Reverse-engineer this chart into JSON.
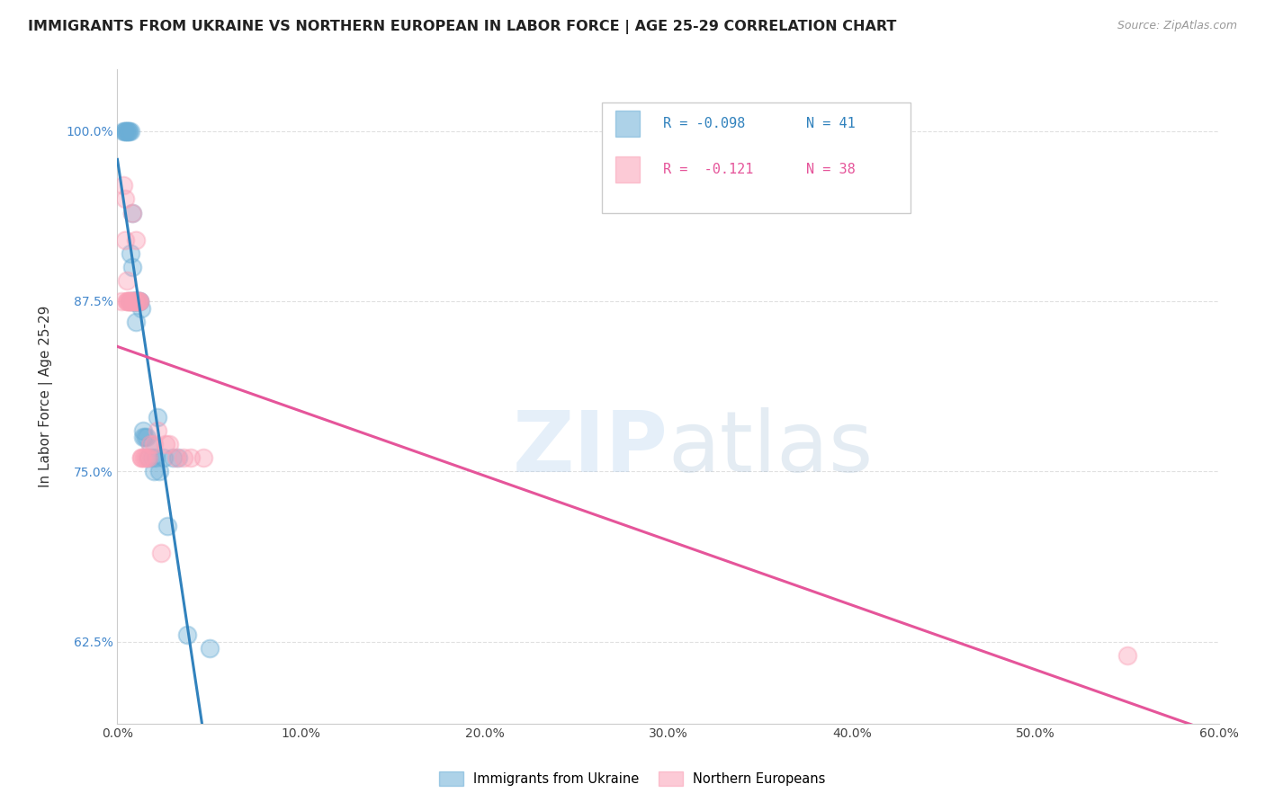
{
  "title": "IMMIGRANTS FROM UKRAINE VS NORTHERN EUROPEAN IN LABOR FORCE | AGE 25-29 CORRELATION CHART",
  "source": "Source: ZipAtlas.com",
  "ylabel": "In Labor Force | Age 25-29",
  "watermark_part1": "ZIP",
  "watermark_part2": "atlas",
  "legend_ukraine_r": "-0.098",
  "legend_ukraine_n": "41",
  "legend_northern_r": "-0.121",
  "legend_northern_n": "38",
  "legend_ukraine_label": "Immigrants from Ukraine",
  "legend_northern_label": "Northern Europeans",
  "ukraine_color": "#6baed6",
  "northern_color": "#fa9fb5",
  "ukraine_line_color": "#3182bd",
  "northern_line_color": "#e5559a",
  "ukraine_scatter_x": [
    0.003,
    0.004,
    0.004,
    0.005,
    0.005,
    0.006,
    0.006,
    0.007,
    0.007,
    0.007,
    0.008,
    0.008,
    0.008,
    0.009,
    0.009,
    0.009,
    0.01,
    0.01,
    0.01,
    0.01,
    0.011,
    0.012,
    0.012,
    0.013,
    0.014,
    0.014,
    0.015,
    0.016,
    0.017,
    0.018,
    0.019,
    0.02,
    0.021,
    0.022,
    0.023,
    0.025,
    0.027,
    0.03,
    0.033,
    0.038,
    0.05
  ],
  "ukraine_scatter_y": [
    1.0,
    1.0,
    1.0,
    1.0,
    1.0,
    1.0,
    1.0,
    1.0,
    0.91,
    0.875,
    0.94,
    0.9,
    0.875,
    0.875,
    0.875,
    0.875,
    0.875,
    0.875,
    0.875,
    0.86,
    0.875,
    0.875,
    0.875,
    0.87,
    0.78,
    0.775,
    0.775,
    0.775,
    0.76,
    0.77,
    0.76,
    0.75,
    0.76,
    0.79,
    0.75,
    0.76,
    0.71,
    0.76,
    0.76,
    0.63,
    0.62
  ],
  "northern_scatter_x": [
    0.002,
    0.003,
    0.004,
    0.004,
    0.005,
    0.005,
    0.005,
    0.006,
    0.006,
    0.007,
    0.007,
    0.008,
    0.008,
    0.009,
    0.009,
    0.01,
    0.01,
    0.011,
    0.011,
    0.012,
    0.012,
    0.013,
    0.013,
    0.014,
    0.015,
    0.016,
    0.017,
    0.018,
    0.02,
    0.022,
    0.024,
    0.026,
    0.028,
    0.032,
    0.036,
    0.04,
    0.047,
    0.55
  ],
  "northern_scatter_y": [
    0.875,
    0.96,
    0.95,
    0.92,
    0.89,
    0.875,
    0.875,
    0.875,
    0.875,
    0.875,
    0.875,
    0.94,
    0.875,
    0.875,
    0.875,
    0.92,
    0.875,
    0.875,
    0.875,
    0.875,
    0.875,
    0.76,
    0.76,
    0.76,
    0.76,
    0.76,
    0.76,
    0.77,
    0.77,
    0.78,
    0.69,
    0.77,
    0.77,
    0.76,
    0.76,
    0.76,
    0.76,
    0.615
  ],
  "xmin": 0.0,
  "xmax": 0.6,
  "ymin": 0.565,
  "ymax": 1.045,
  "yticks": [
    0.625,
    0.75,
    0.875,
    1.0
  ],
  "ytick_labels": [
    "62.5%",
    "75.0%",
    "87.5%",
    "100.0%"
  ],
  "xticks": [
    0.0,
    0.1,
    0.2,
    0.3,
    0.4,
    0.5,
    0.6
  ],
  "xtick_labels": [
    "0.0%",
    "10.0%",
    "20.0%",
    "30.0%",
    "40.0%",
    "50.0%",
    "60.0%"
  ],
  "background_color": "#ffffff",
  "grid_color": "#e0e0e0"
}
